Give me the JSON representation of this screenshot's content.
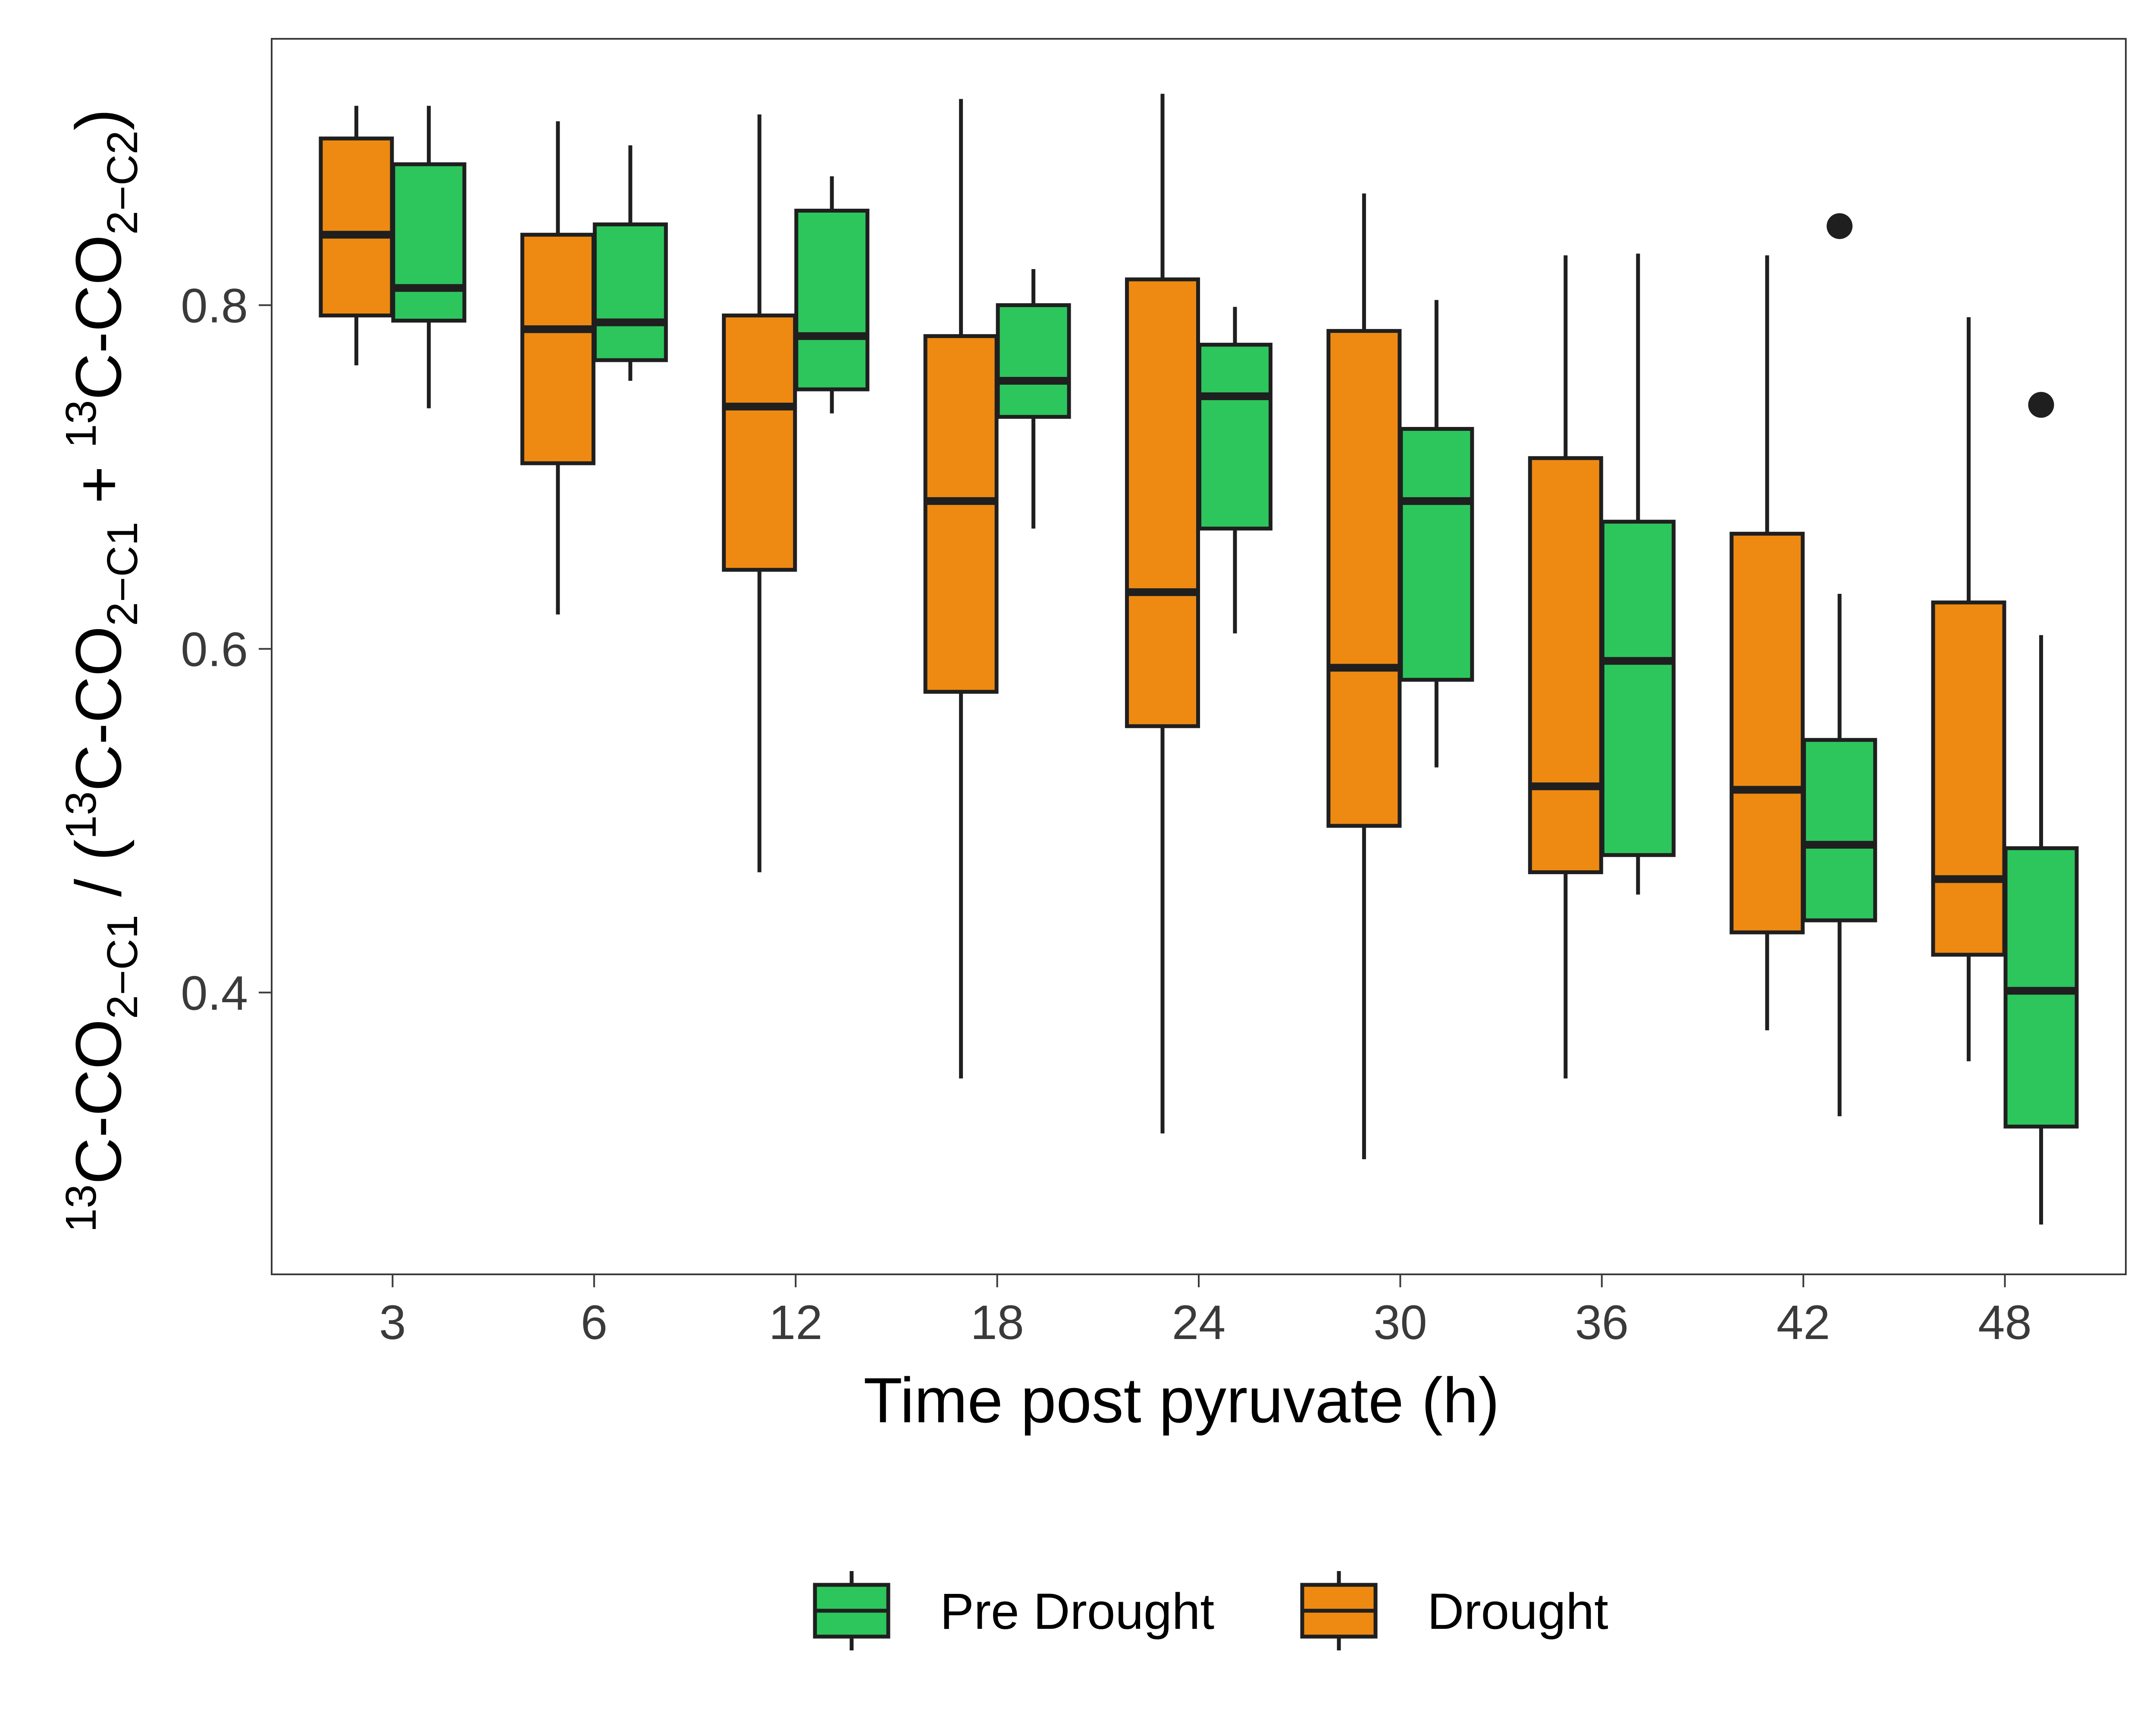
{
  "chart_data": {
    "type": "box",
    "categories": [
      "3",
      "6",
      "12",
      "18",
      "24",
      "30",
      "36",
      "42",
      "48"
    ],
    "xlabel": "Time post pyruvate (h)",
    "ylabel": {
      "parts": [
        "13",
        "C-CO",
        "2",
        "−C1",
        " / (",
        "13",
        "C-CO",
        "2",
        "−C1",
        " + ",
        "13",
        "C-CO",
        "2",
        "−C2",
        ")"
      ]
    },
    "ylim": [
      0.236,
      0.955
    ],
    "yticks": [
      {
        "value": 0.4,
        "label": "0.4"
      },
      {
        "value": 0.6,
        "label": "0.6"
      },
      {
        "value": 0.8,
        "label": "0.8"
      }
    ],
    "grid": false,
    "legend_position": "bottom",
    "legend": [
      {
        "key": "pre",
        "label": "Pre Drought"
      },
      {
        "key": "drought",
        "label": "Drought"
      }
    ],
    "colors": {
      "drought": "#EE8A12",
      "pre": "#2DC65D",
      "stroke": "#1f1f1f",
      "tick_text": "#3a3a3a",
      "panel_border": "#3a3a3a"
    },
    "series": [
      {
        "key": "drought",
        "boxes": [
          {
            "whisker_low": 0.765,
            "q1": 0.794,
            "median": 0.841,
            "q3": 0.897,
            "whisker_high": 0.916,
            "outliers": []
          },
          {
            "whisker_low": 0.62,
            "q1": 0.708,
            "median": 0.786,
            "q3": 0.841,
            "whisker_high": 0.907,
            "outliers": []
          },
          {
            "whisker_low": 0.47,
            "q1": 0.646,
            "median": 0.741,
            "q3": 0.794,
            "whisker_high": 0.911,
            "outliers": []
          },
          {
            "whisker_low": 0.35,
            "q1": 0.575,
            "median": 0.686,
            "q3": 0.782,
            "whisker_high": 0.92,
            "outliers": []
          },
          {
            "whisker_low": 0.318,
            "q1": 0.555,
            "median": 0.633,
            "q3": 0.815,
            "whisker_high": 0.923,
            "outliers": []
          },
          {
            "whisker_low": 0.303,
            "q1": 0.497,
            "median": 0.589,
            "q3": 0.785,
            "whisker_high": 0.865,
            "outliers": []
          },
          {
            "whisker_low": 0.35,
            "q1": 0.47,
            "median": 0.52,
            "q3": 0.711,
            "whisker_high": 0.829,
            "outliers": []
          },
          {
            "whisker_low": 0.378,
            "q1": 0.435,
            "median": 0.518,
            "q3": 0.667,
            "whisker_high": 0.829,
            "outliers": []
          },
          {
            "whisker_low": 0.36,
            "q1": 0.422,
            "median": 0.466,
            "q3": 0.627,
            "whisker_high": 0.793,
            "outliers": []
          }
        ]
      },
      {
        "key": "pre",
        "boxes": [
          {
            "whisker_low": 0.74,
            "q1": 0.791,
            "median": 0.81,
            "q3": 0.882,
            "whisker_high": 0.916,
            "outliers": []
          },
          {
            "whisker_low": 0.756,
            "q1": 0.768,
            "median": 0.79,
            "q3": 0.847,
            "whisker_high": 0.893,
            "outliers": []
          },
          {
            "whisker_low": 0.737,
            "q1": 0.751,
            "median": 0.782,
            "q3": 0.855,
            "whisker_high": 0.875,
            "outliers": []
          },
          {
            "whisker_low": 0.67,
            "q1": 0.735,
            "median": 0.756,
            "q3": 0.8,
            "whisker_high": 0.821,
            "outliers": []
          },
          {
            "whisker_low": 0.609,
            "q1": 0.67,
            "median": 0.747,
            "q3": 0.777,
            "whisker_high": 0.799,
            "outliers": []
          },
          {
            "whisker_low": 0.531,
            "q1": 0.582,
            "median": 0.686,
            "q3": 0.728,
            "whisker_high": 0.803,
            "outliers": []
          },
          {
            "whisker_low": 0.457,
            "q1": 0.48,
            "median": 0.593,
            "q3": 0.674,
            "whisker_high": 0.83,
            "outliers": []
          },
          {
            "whisker_low": 0.328,
            "q1": 0.442,
            "median": 0.486,
            "q3": 0.547,
            "whisker_high": 0.632,
            "outliers": [
              0.846
            ]
          },
          {
            "whisker_low": 0.265,
            "q1": 0.322,
            "median": 0.401,
            "q3": 0.484,
            "whisker_high": 0.608,
            "outliers": [
              0.742
            ]
          }
        ]
      }
    ]
  }
}
